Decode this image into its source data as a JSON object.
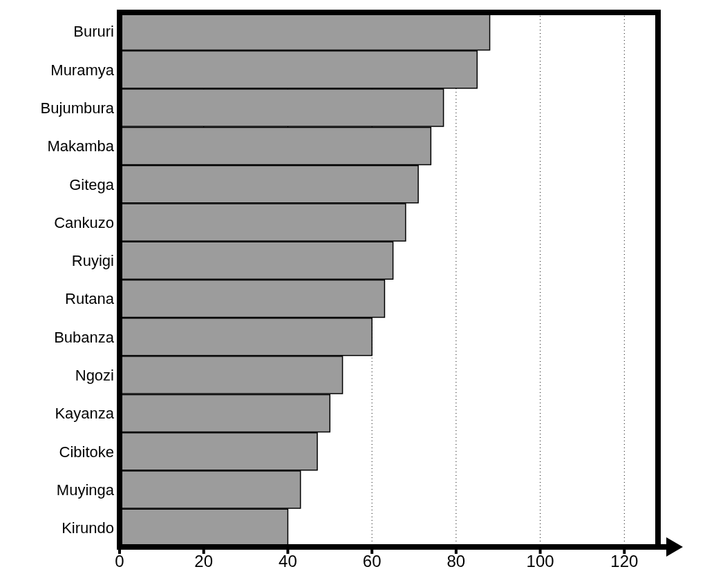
{
  "chart_data": {
    "type": "bar",
    "orientation": "horizontal",
    "categories": [
      "Bururi",
      "Muramya",
      "Bujumbura",
      "Makamba",
      "Gitega",
      "Cankuzo",
      "Ruyigi",
      "Rutana",
      "Bubanza",
      "Ngozi",
      "Kayanza",
      "Cibitoke",
      "Muyinga",
      "Kirundo"
    ],
    "values": [
      88,
      85,
      77,
      74,
      71,
      68,
      65,
      63,
      60,
      53,
      50,
      47,
      43,
      40
    ],
    "color": "#9c9c9c",
    "xlim": [
      0,
      128
    ],
    "xticks": [
      0,
      20,
      40,
      60,
      80,
      100,
      120
    ],
    "grid": "x"
  }
}
